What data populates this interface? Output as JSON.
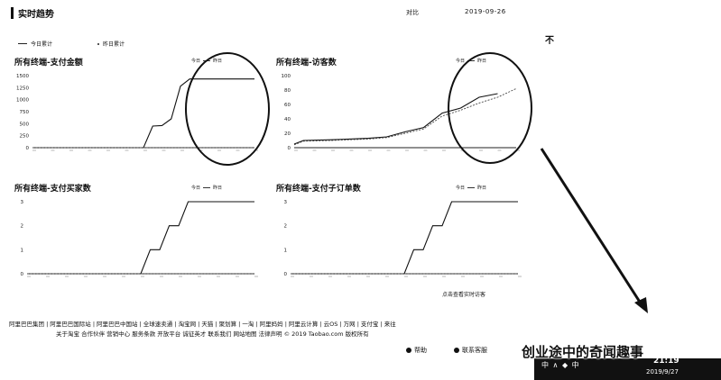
{
  "header": {
    "title": "实时趋势",
    "compare_label": "对比",
    "date": "2019-09-26"
  },
  "right_cut_text": "不",
  "legend": {
    "today": "今日累计",
    "yesterday": "昨日累计"
  },
  "charts": [
    {
      "title": "所有终端-支付金额",
      "legend": [
        "今日",
        "昨日"
      ]
    },
    {
      "title": "所有终端-访客数",
      "legend": [
        "今日",
        "昨日"
      ]
    },
    {
      "title": "所有终端-支付买家数",
      "legend": [
        "今日",
        "昨日"
      ]
    },
    {
      "title": "所有终端-支付子订单数",
      "legend": [
        "今日",
        "昨日"
      ]
    }
  ],
  "chart_data": [
    {
      "type": "line",
      "title": "所有终端-支付金额",
      "yticks": [
        "1500",
        "1250",
        "1000",
        "750",
        "500",
        "250",
        "0"
      ],
      "ylim": [
        0,
        1500
      ],
      "series": [
        {
          "name": "今日",
          "x": [
            0,
            12,
            13,
            14,
            15,
            16,
            17,
            18,
            24
          ],
          "y": [
            0,
            0,
            450,
            460,
            600,
            1280,
            1430,
            1430,
            1430
          ]
        },
        {
          "name": "昨日",
          "x": [
            0,
            24
          ],
          "y": [
            0,
            0
          ]
        }
      ]
    },
    {
      "type": "line",
      "title": "所有终端-访客数",
      "yticks": [
        "100",
        "80",
        "60",
        "40",
        "20",
        "0"
      ],
      "ylim": [
        0,
        100
      ],
      "series": [
        {
          "name": "今日",
          "x": [
            0,
            1,
            4,
            8,
            10,
            12,
            14,
            16,
            18,
            20,
            22
          ],
          "y": [
            5,
            10,
            11,
            13,
            15,
            22,
            28,
            48,
            55,
            70,
            75
          ]
        },
        {
          "name": "昨日",
          "x": [
            0,
            1,
            4,
            8,
            10,
            12,
            14,
            16,
            18,
            20,
            22,
            24
          ],
          "y": [
            4,
            9,
            10,
            12,
            14,
            20,
            26,
            44,
            52,
            62,
            70,
            82
          ]
        }
      ]
    },
    {
      "type": "line",
      "title": "所有终端-支付买家数",
      "yticks": [
        "3",
        "2",
        "1",
        "0"
      ],
      "ylim": [
        0,
        3
      ],
      "series": [
        {
          "name": "今日",
          "x": [
            0,
            12,
            13,
            14,
            15,
            16,
            17,
            18,
            24
          ],
          "y": [
            0,
            0,
            1,
            1,
            2,
            2,
            3,
            3,
            3
          ]
        },
        {
          "name": "昨日",
          "x": [
            0,
            24
          ],
          "y": [
            0,
            0
          ]
        }
      ]
    },
    {
      "type": "line",
      "title": "所有终端-支付子订单数",
      "yticks": [
        "3",
        "2",
        "1",
        "0"
      ],
      "ylim": [
        0,
        3
      ],
      "series": [
        {
          "name": "今日",
          "x": [
            0,
            12,
            13,
            14,
            15,
            16,
            17,
            18,
            24
          ],
          "y": [
            0,
            0,
            1,
            1,
            2,
            2,
            3,
            3,
            3
          ]
        },
        {
          "name": "昨日",
          "x": [
            0,
            24
          ],
          "y": [
            0,
            0
          ]
        }
      ]
    }
  ],
  "chart_note": "点击查看实时访客",
  "footer": {
    "links": [
      "阿里巴巴集团",
      "阿里巴巴国际站",
      "阿里巴巴中国站",
      "全球速卖通",
      "淘宝网",
      "天猫",
      "聚划算",
      "一淘",
      "阿里妈妈",
      "阿里云计算",
      "云OS",
      "万网",
      "支付宝",
      "来往"
    ],
    "copyright": "关于淘宝 合作伙伴 营销中心 服务条款 开放平台 诚征英才 联系我们 网站地图 法律声明 © 2019 Taobao.com 版权所有"
  },
  "bottom_buttons": [
    "帮助",
    "联系客服"
  ],
  "taskbar": {
    "text": "中 ∧ ◆ 中",
    "time": "21:19",
    "date": "2019/9/27"
  },
  "watermark": "创业途中的奇闻趣事"
}
